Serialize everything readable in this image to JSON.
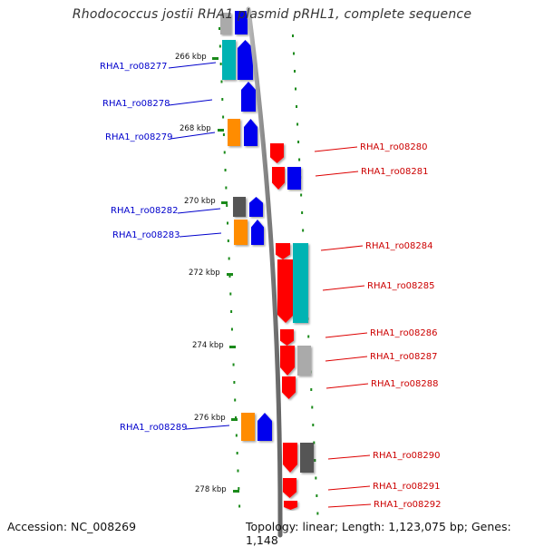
{
  "title": "Rhodococcus jostii RHA1 plasmid pRHL1, complete sequence",
  "footer": {
    "accession": "Accession: NC_008269",
    "topology": "Topology: linear; Length: 1,123,075 bp; Genes: 1,148"
  },
  "colors": {
    "blue": "#0000ee",
    "cyan": "#00b3b3",
    "orange": "#ff8c00",
    "gray": "#555555",
    "red": "#ff0000",
    "lightgray": "#aaaaaa"
  },
  "axis_ticks": [
    {
      "label": "266 kbp",
      "value": 266
    },
    {
      "label": "268 kbp",
      "value": 268
    },
    {
      "label": "270 kbp",
      "value": 270
    },
    {
      "label": "272 kbp",
      "value": 272
    },
    {
      "label": "274 kbp",
      "value": 274
    },
    {
      "label": "276 kbp",
      "value": 276
    },
    {
      "label": "278 kbp",
      "value": 278
    }
  ],
  "left_labels": [
    "RHA1_ro08277",
    "RHA1_ro08278",
    "RHA1_ro08279",
    "RHA1_ro08282",
    "RHA1_ro08283",
    "RHA1_ro08289"
  ],
  "right_labels": [
    "RHA1_ro08280",
    "RHA1_ro08281",
    "RHA1_ro08284",
    "RHA1_ro08285",
    "RHA1_ro08286",
    "RHA1_ro08287",
    "RHA1_ro08288",
    "RHA1_ro08290",
    "RHA1_ro08291",
    "RHA1_ro08292"
  ]
}
